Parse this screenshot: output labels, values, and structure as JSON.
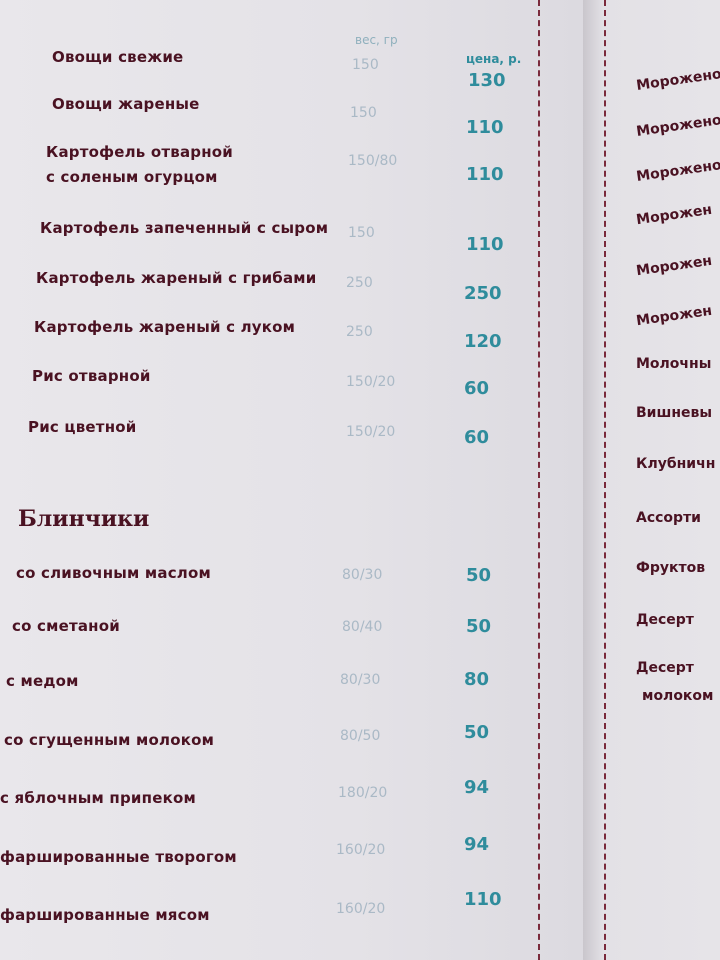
{
  "headers": {
    "weight": "вес, гр",
    "price": "цена, р."
  },
  "items": [
    {
      "name": "Овощи свежие",
      "weight": "150",
      "price": "130"
    },
    {
      "name": "Овощи жареные",
      "weight": "150",
      "price": "110"
    },
    {
      "name": "Картофель отварной",
      "name2": "с соленым огурцом",
      "weight": "150/80",
      "price": "110"
    },
    {
      "name": "Картофель запеченный с сыром",
      "weight": "150",
      "price": "110"
    },
    {
      "name": "Картофель жареный с грибами",
      "weight": "250",
      "price": "250"
    },
    {
      "name": "Картофель жареный с луком",
      "weight": "250",
      "price": "120"
    },
    {
      "name": "Рис отварной",
      "weight": "150/20",
      "price": "60"
    },
    {
      "name": "Рис цветной",
      "weight": "150/20",
      "price": "60"
    }
  ],
  "section": "Блинчики",
  "pancakes": [
    {
      "name": "со сливочным маслом",
      "weight": "80/30",
      "price": "50"
    },
    {
      "name": "со сметаной",
      "weight": "80/40",
      "price": "50"
    },
    {
      "name": "с медом",
      "weight": "80/30",
      "price": "80"
    },
    {
      "name": "со сгущенным молоком",
      "weight": "80/50",
      "price": "50"
    },
    {
      "name": "с яблочным припеком",
      "weight": "180/20",
      "price": "94"
    },
    {
      "name": "фаршированные творогом",
      "weight": "160/20",
      "price": "94"
    },
    {
      "name": "фаршированные мясом",
      "weight": "160/20",
      "price": "110"
    }
  ],
  "right_page": [
    "Морожено",
    "Морожено",
    "Морожено",
    "Морожен",
    "Морожен",
    "Морожен",
    "Молочны",
    "Вишневы",
    "Клубничн",
    "Ассорти",
    "Фруктов",
    "Десерт",
    "Десерт",
    "молоком"
  ]
}
